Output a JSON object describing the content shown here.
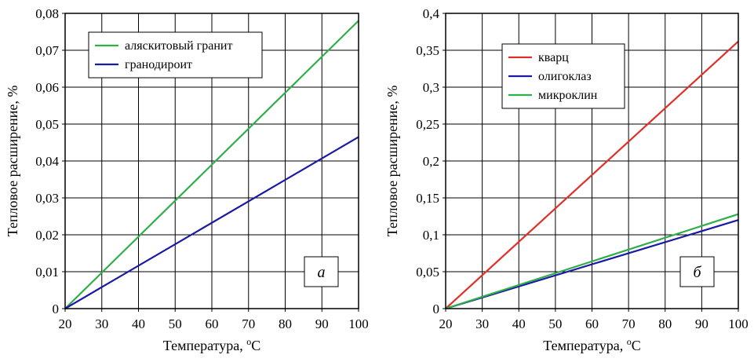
{
  "chart_data": [
    {
      "type": "line",
      "panel_label": "а",
      "xlabel": "Температура, ",
      "xlabel_sup": "о",
      "xlabel_unit": "С",
      "ylabel": "Тепловое расширение, %",
      "xlim": [
        20,
        100
      ],
      "ylim": [
        0,
        0.08
      ],
      "grid": true,
      "legend_position": "top-left",
      "x_ticks": [
        20,
        30,
        40,
        50,
        60,
        70,
        80,
        90,
        100
      ],
      "x_tick_labels": [
        "20",
        "30",
        "40",
        "50",
        "60",
        "70",
        "80",
        "90",
        "100"
      ],
      "y_ticks": [
        0,
        0.01,
        0.02,
        0.03,
        0.04,
        0.05,
        0.06,
        0.07,
        0.08
      ],
      "y_tick_labels": [
        "0",
        "0,01",
        "0,02",
        "0,03",
        "0,04",
        "0,05",
        "0,06",
        "0,07",
        "0,08"
      ],
      "series": [
        {
          "name": "аляскитовый гранит",
          "color": "#2fae4a",
          "x": [
            20,
            100
          ],
          "y": [
            0,
            0.078
          ]
        },
        {
          "name": "гранодироит",
          "color": "#1a1aa6",
          "x": [
            20,
            100
          ],
          "y": [
            0,
            0.0465
          ]
        }
      ]
    },
    {
      "type": "line",
      "panel_label": "б",
      "xlabel": "Температура, ",
      "xlabel_sup": "о",
      "xlabel_unit": "С",
      "ylabel": "Тепловое расширение, %",
      "xlim": [
        20,
        100
      ],
      "ylim": [
        0,
        0.4
      ],
      "grid": true,
      "legend_position": "top-left",
      "x_ticks": [
        20,
        30,
        40,
        50,
        60,
        70,
        80,
        90,
        100
      ],
      "x_tick_labels": [
        "20",
        "30",
        "40",
        "50",
        "60",
        "70",
        "80",
        "90",
        "100"
      ],
      "y_ticks": [
        0,
        0.05,
        0.1,
        0.15,
        0.2,
        0.25,
        0.3,
        0.35,
        0.4
      ],
      "y_tick_labels": [
        "0",
        "0,05",
        "0,1",
        "0,15",
        "0,2",
        "0,25",
        "0,3",
        "0,35",
        "0,4"
      ],
      "series": [
        {
          "name": "кварц",
          "color": "#e0302a",
          "x": [
            20,
            100
          ],
          "y": [
            0,
            0.362
          ]
        },
        {
          "name": "олигоклаз",
          "color": "#1a1aa6",
          "x": [
            20,
            100
          ],
          "y": [
            0,
            0.12
          ]
        },
        {
          "name": "микроклин",
          "color": "#2fae4a",
          "x": [
            20,
            100
          ],
          "y": [
            0,
            0.128
          ]
        }
      ]
    }
  ]
}
